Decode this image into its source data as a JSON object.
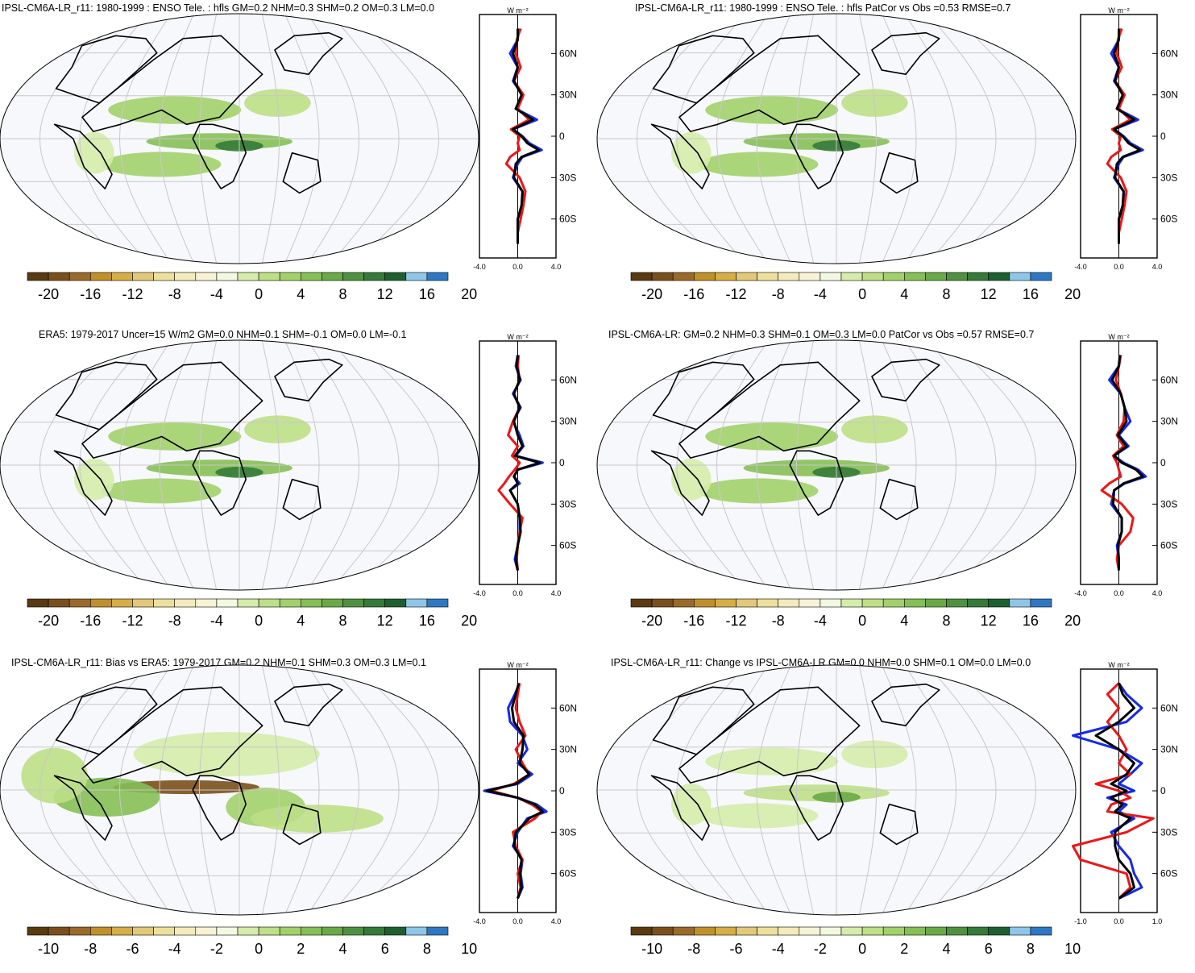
{
  "colors": {
    "palette_neg": [
      "#5a3a10",
      "#7a4f1c",
      "#9b6a2a",
      "#c0902a",
      "#d6ae45",
      "#e3c878",
      "#ede09c",
      "#f4ebbc",
      "#f8f2d6"
    ],
    "palette_pos": [
      "#f3f8e0",
      "#d5ecab",
      "#bddf86",
      "#a2d06a",
      "#85bf55",
      "#6aaa46",
      "#4f9140",
      "#357a39",
      "#1e5f30",
      "#8ec6ea",
      "#2d78c4"
    ],
    "ocean": "#f7f8fc",
    "land": "#ffffff",
    "graticule": "#c8c8c8",
    "coast": "#000000",
    "line_blue": "#1428f0",
    "line_red": "#f01414",
    "line_black": "#000000"
  },
  "colorbar_a": {
    "labels": [
      "-20",
      "-16",
      "-12",
      "-8",
      "-4",
      "0",
      "4",
      "8",
      "12",
      "16",
      "20"
    ]
  },
  "colorbar_b": {
    "labels": [
      "-10",
      "-8",
      "-6",
      "-4",
      "-2",
      "0",
      "2",
      "4",
      "6",
      "8",
      "10"
    ]
  },
  "zonal": {
    "units_label": "W m⁻²",
    "lat_labels": [
      "60N",
      "30N",
      "0",
      "30S",
      "60S"
    ],
    "ticks_a": [
      "-4.0",
      "0.0",
      "4.0"
    ],
    "ticks_b": [
      "-1.0",
      "0.0",
      "1.0"
    ]
  },
  "panels": [
    {
      "title": "IPSL-CM6A-LR_r11: 1980-1999 : ENSO Tele. : hfls GM=0.2 NHM=0.3 SHM=0.2 OM=0.3 LM=0.0"
    },
    {
      "title": "IPSL-CM6A-LR_r11: 1980-1999 : ENSO Tele. : hfls PatCor vs Obs =0.53 RMSE=0.7"
    },
    {
      "title": "ERA5: 1979-2017 Uncer=15 W/m2 GM=0.0 NHM=0.1 SHM=-0.1 OM=0.0 LM=-0.1"
    },
    {
      "title": "IPSL-CM6A-LR: GM=0.2 NHM=0.3 SHM=0.1 OM=0.3 LM=0.0 PatCor vs Obs =0.57 RMSE=0.7"
    },
    {
      "title": "IPSL-CM6A-LR_r11: Bias vs ERA5: 1979-2017 GM=0.2 NHM=0.1 SHM=0.3 OM=0.3 LM=0.1"
    },
    {
      "title": "IPSL-CM6A-LR_r11: Change vs IPSL-CM6A-LR GM=0.0 NHM=0.0 SHM=0.1 OM=0.0 LM=0.0"
    }
  ],
  "chart_data": [
    {
      "type": "heatmap",
      "title": "IPSL-CM6A-LR_r11: 1980-1999 : ENSO Tele. : hfls GM=0.2 NHM=0.3 SHM=0.2 OM=0.3 LM=0.0",
      "colorbar_ticks": [
        -20,
        -16,
        -12,
        -8,
        -4,
        0,
        4,
        8,
        12,
        16,
        20
      ],
      "zonal_mean": {
        "type": "line",
        "x_ticks": [
          -4.0,
          0.0,
          4.0
        ],
        "y_ticks": [
          "60N",
          "30N",
          "0",
          "30S",
          "60S"
        ],
        "lat": [
          78,
          70,
          60,
          50,
          40,
          30,
          20,
          12,
          5,
          0,
          -5,
          -10,
          -15,
          -20,
          -30,
          -40,
          -50,
          -60,
          -70,
          -78
        ],
        "series": [
          {
            "values": [
              0.1,
              0.0,
              -0.8,
              0.0,
              -0.5,
              0.5,
              -0.2,
              2.0,
              -0.5,
              0.5,
              1.2,
              2.5,
              0.5,
              0.0,
              -0.5,
              0.5,
              0.5,
              0.0,
              0.0,
              0.0
            ]
          },
          {
            "values": [
              0.3,
              -0.1,
              -0.2,
              0.3,
              -0.4,
              0.6,
              0.0,
              1.2,
              -0.7,
              0.2,
              0.0,
              0.2,
              -0.8,
              -1.2,
              0.2,
              0.8,
              0.6,
              0.3,
              0.0,
              0.0
            ]
          },
          {
            "values": [
              0.0,
              0.0,
              -0.5,
              0.0,
              -0.4,
              0.4,
              -0.2,
              1.6,
              -0.5,
              0.4,
              1.0,
              2.2,
              0.4,
              -0.2,
              -0.4,
              0.5,
              0.4,
              0.0,
              0.0,
              0.0
            ]
          }
        ]
      }
    },
    {
      "type": "heatmap",
      "title": "IPSL-CM6A-LR_r11: 1980-1999 : ENSO Tele. : hfls PatCor vs Obs =0.53 RMSE=0.7",
      "colorbar_ticks": [
        -20,
        -16,
        -12,
        -8,
        -4,
        0,
        4,
        8,
        12,
        16,
        20
      ],
      "zonal_mean": {
        "type": "line",
        "x_ticks": [
          -4.0,
          0.0,
          4.0
        ],
        "y_ticks": [
          "60N",
          "30N",
          "0",
          "30S",
          "60S"
        ],
        "lat": [
          78,
          70,
          60,
          50,
          40,
          30,
          20,
          12,
          5,
          0,
          -5,
          -10,
          -15,
          -20,
          -30,
          -40,
          -50,
          -60,
          -70,
          -78
        ],
        "series": [
          {
            "values": [
              0.1,
              0.0,
              -0.8,
              0.0,
              -0.5,
              0.5,
              -0.2,
              2.0,
              -0.5,
              0.5,
              1.2,
              2.5,
              0.5,
              0.0,
              -0.5,
              0.5,
              0.5,
              0.0,
              0.0,
              0.0
            ]
          },
          {
            "values": [
              0.3,
              -0.1,
              -0.2,
              0.3,
              -0.4,
              0.6,
              0.0,
              1.2,
              -0.7,
              0.2,
              0.0,
              0.2,
              -0.8,
              -1.2,
              0.2,
              0.8,
              0.6,
              0.3,
              0.0,
              0.0
            ]
          },
          {
            "values": [
              0.0,
              0.0,
              -0.5,
              0.0,
              -0.4,
              0.4,
              -0.2,
              1.6,
              -0.5,
              0.4,
              1.0,
              2.2,
              0.4,
              -0.2,
              -0.4,
              0.5,
              0.4,
              0.0,
              0.0,
              0.0
            ]
          }
        ]
      }
    },
    {
      "type": "heatmap",
      "title": "ERA5: 1979-2017 Uncer=15 W/m2 GM=0.0 NHM=0.1 SHM=-0.1 OM=0.0 LM=-0.1",
      "colorbar_ticks": [
        -20,
        -16,
        -12,
        -8,
        -4,
        0,
        4,
        8,
        12,
        16,
        20
      ],
      "zonal_mean": {
        "type": "line",
        "x_ticks": [
          -4.0,
          0.0,
          4.0
        ],
        "y_ticks": [
          "60N",
          "30N",
          "0",
          "30S",
          "60S"
        ],
        "lat": [
          78,
          70,
          60,
          50,
          40,
          30,
          20,
          12,
          5,
          0,
          -5,
          -10,
          -15,
          -20,
          -30,
          -40,
          -50,
          -60,
          -70,
          -78
        ],
        "series": [
          {
            "values": [
              0.0,
              -0.2,
              0.3,
              -0.5,
              0.3,
              -0.5,
              0.2,
              0.6,
              -0.2,
              2.6,
              0.0,
              -0.4,
              0.2,
              -0.8,
              0.0,
              0.2,
              0.2,
              0.0,
              -0.3,
              0.0
            ]
          },
          {
            "values": [
              0.1,
              0.0,
              0.2,
              -0.4,
              0.2,
              -0.5,
              -1.0,
              0.0,
              -0.6,
              0.2,
              -0.3,
              -0.9,
              -1.4,
              -2.0,
              -0.8,
              0.5,
              0.2,
              0.0,
              -0.1,
              0.0
            ]
          },
          {
            "values": [
              0.0,
              -0.1,
              0.2,
              -0.4,
              0.2,
              -0.4,
              0.0,
              0.5,
              -0.3,
              2.3,
              0.0,
              -0.4,
              0.0,
              -0.8,
              0.0,
              0.2,
              0.3,
              0.0,
              -0.2,
              0.0
            ]
          }
        ]
      }
    },
    {
      "type": "heatmap",
      "title": "IPSL-CM6A-LR: GM=0.2 NHM=0.3 SHM=0.1 OM=0.3 LM=0.0 PatCor vs Obs =0.57 RMSE=0.7",
      "colorbar_ticks": [
        -20,
        -16,
        -12,
        -8,
        -4,
        0,
        4,
        8,
        12,
        16,
        20
      ],
      "zonal_mean": {
        "type": "line",
        "x_ticks": [
          -4.0,
          0.0,
          4.0
        ],
        "y_ticks": [
          "60N",
          "30N",
          "0",
          "30S",
          "60S"
        ],
        "lat": [
          78,
          70,
          60,
          50,
          40,
          30,
          20,
          12,
          5,
          0,
          -5,
          -10,
          -15,
          -20,
          -30,
          -40,
          -50,
          -60,
          -70,
          -78
        ],
        "series": [
          {
            "values": [
              0.2,
              0.0,
              -1.0,
              0.2,
              0.6,
              1.2,
              0.0,
              1.0,
              -0.5,
              0.5,
              2.0,
              2.8,
              0.6,
              -0.5,
              -0.8,
              0.3,
              0.3,
              -0.2,
              0.0,
              0.0
            ]
          },
          {
            "values": [
              0.2,
              0.0,
              -0.3,
              0.2,
              0.6,
              0.5,
              -0.2,
              0.5,
              -0.6,
              -0.2,
              0.0,
              0.2,
              -1.0,
              -1.8,
              0.3,
              1.5,
              1.2,
              0.0,
              -0.2,
              0.0
            ]
          },
          {
            "values": [
              0.1,
              0.0,
              -0.7,
              0.2,
              0.6,
              0.8,
              -0.1,
              0.8,
              -0.5,
              0.3,
              1.8,
              2.5,
              0.5,
              -0.5,
              -0.6,
              0.3,
              0.3,
              -0.1,
              0.0,
              0.0
            ]
          }
        ]
      }
    },
    {
      "type": "heatmap",
      "title": "IPSL-CM6A-LR_r11: Bias vs ERA5: 1979-2017 GM=0.2 NHM=0.1 SHM=0.3 OM=0.3 LM=0.1",
      "colorbar_ticks": [
        -10,
        -8,
        -6,
        -4,
        -2,
        0,
        2,
        4,
        6,
        8,
        10
      ],
      "zonal_mean": {
        "type": "line",
        "x_ticks": [
          -4.0,
          0.0,
          4.0
        ],
        "y_ticks": [
          "60N",
          "30N",
          "0",
          "30S",
          "60S"
        ],
        "lat": [
          78,
          70,
          60,
          50,
          40,
          30,
          20,
          12,
          5,
          0,
          -5,
          -10,
          -15,
          -20,
          -30,
          -40,
          -50,
          -60,
          -70,
          -78
        ],
        "series": [
          {
            "values": [
              0.2,
              -0.3,
              -1.0,
              -0.8,
              0.5,
              1.0,
              0.0,
              1.5,
              0.0,
              -3.5,
              0.0,
              2.0,
              3.0,
              1.0,
              0.0,
              -0.5,
              0.5,
              0.3,
              0.5,
              0.0
            ]
          },
          {
            "values": [
              0.2,
              0.0,
              -0.2,
              0.2,
              0.8,
              -0.2,
              0.5,
              1.2,
              -0.4,
              -2.8,
              0.0,
              1.5,
              2.5,
              1.8,
              -0.5,
              -0.2,
              0.5,
              0.0,
              0.3,
              0.0
            ]
          },
          {
            "values": [
              0.1,
              -0.2,
              -0.6,
              -0.4,
              0.6,
              0.5,
              0.2,
              1.2,
              -0.2,
              -3.2,
              0.0,
              1.8,
              2.6,
              1.2,
              -0.2,
              -0.4,
              0.4,
              0.2,
              0.4,
              0.0
            ]
          }
        ]
      }
    },
    {
      "type": "heatmap",
      "title": "IPSL-CM6A-LR_r11: Change vs IPSL-CM6A-LR GM=0.0 NHM=0.0 SHM=0.1 OM=0.0 LM=0.0",
      "colorbar_ticks": [
        -10,
        -8,
        -6,
        -4,
        -2,
        0,
        2,
        4,
        6,
        8,
        10
      ],
      "zonal_mean": {
        "type": "line",
        "x_ticks": [
          -1.0,
          0.0,
          1.0
        ],
        "y_ticks": [
          "60N",
          "30N",
          "0",
          "30S",
          "60S"
        ],
        "lat": [
          78,
          70,
          60,
          50,
          40,
          30,
          20,
          12,
          5,
          0,
          -5,
          -10,
          -15,
          -20,
          -30,
          -40,
          -50,
          -60,
          -70,
          -78
        ],
        "series": [
          {
            "values": [
              0.0,
              0.2,
              0.6,
              0.2,
              -1.2,
              0.0,
              0.6,
              0.3,
              0.0,
              0.4,
              -0.3,
              0.2,
              0.0,
              0.4,
              -0.2,
              0.0,
              0.3,
              0.4,
              0.6,
              0.0
            ]
          },
          {
            "values": [
              0.0,
              -0.3,
              0.0,
              -0.3,
              0.0,
              0.2,
              0.0,
              0.3,
              -0.6,
              0.0,
              0.3,
              -0.2,
              -0.3,
              0.9,
              0.2,
              -1.2,
              -1.0,
              0.2,
              0.3,
              0.0
            ]
          },
          {
            "values": [
              0.0,
              0.1,
              0.4,
              0.0,
              -0.6,
              0.0,
              0.4,
              0.2,
              -0.2,
              0.2,
              -0.2,
              0.1,
              -0.1,
              0.3,
              -0.1,
              -0.1,
              0.0,
              0.3,
              0.4,
              0.0
            ]
          }
        ]
      }
    }
  ]
}
